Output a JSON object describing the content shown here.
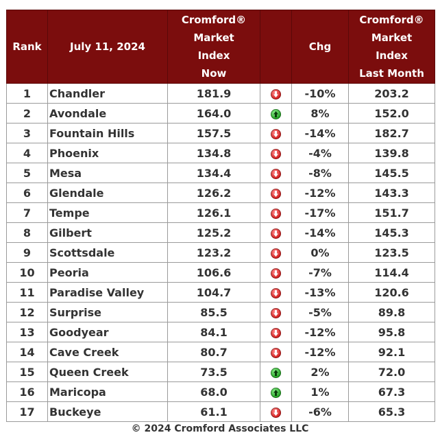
{
  "headers": {
    "rank": "Rank",
    "date": "July 11, 2024",
    "now": [
      "Cromford®",
      "Market",
      "Index",
      "Now"
    ],
    "chg": "Chg",
    "last": [
      "Cromford®",
      "Market",
      "Index",
      "Last Month"
    ]
  },
  "rows": [
    {
      "rank": "1",
      "city": "Chandler",
      "now": "181.9",
      "dir": "down",
      "chg": "-10%",
      "last": "203.2"
    },
    {
      "rank": "2",
      "city": "Avondale",
      "now": "164.0",
      "dir": "up",
      "chg": "8%",
      "last": "152.0"
    },
    {
      "rank": "3",
      "city": "Fountain Hills",
      "now": "157.5",
      "dir": "down",
      "chg": "-14%",
      "last": "182.7"
    },
    {
      "rank": "4",
      "city": "Phoenix",
      "now": "134.8",
      "dir": "down",
      "chg": "-4%",
      "last": "139.8"
    },
    {
      "rank": "5",
      "city": "Mesa",
      "now": "134.4",
      "dir": "down",
      "chg": "-8%",
      "last": "145.5"
    },
    {
      "rank": "6",
      "city": "Glendale",
      "now": "126.2",
      "dir": "down",
      "chg": "-12%",
      "last": "143.3"
    },
    {
      "rank": "7",
      "city": "Tempe",
      "now": "126.1",
      "dir": "down",
      "chg": "-17%",
      "last": "151.7"
    },
    {
      "rank": "8",
      "city": "Gilbert",
      "now": "125.2",
      "dir": "down",
      "chg": "-14%",
      "last": "145.3"
    },
    {
      "rank": "9",
      "city": "Scottsdale",
      "now": "123.2",
      "dir": "down",
      "chg": "0%",
      "last": "123.5"
    },
    {
      "rank": "10",
      "city": "Peoria",
      "now": "106.6",
      "dir": "down",
      "chg": "-7%",
      "last": "114.4"
    },
    {
      "rank": "11",
      "city": "Paradise Valley",
      "now": "104.7",
      "dir": "down",
      "chg": "-13%",
      "last": "120.6"
    },
    {
      "rank": "12",
      "city": "Surprise",
      "now": "85.5",
      "dir": "down",
      "chg": "-5%",
      "last": "89.8"
    },
    {
      "rank": "13",
      "city": "Goodyear",
      "now": "84.1",
      "dir": "down",
      "chg": "-12%",
      "last": "95.8"
    },
    {
      "rank": "14",
      "city": "Cave Creek",
      "now": "80.7",
      "dir": "down",
      "chg": "-12%",
      "last": "92.1"
    },
    {
      "rank": "15",
      "city": "Queen Creek",
      "now": "73.5",
      "dir": "up",
      "chg": "2%",
      "last": "72.0"
    },
    {
      "rank": "16",
      "city": "Maricopa",
      "now": "68.0",
      "dir": "up",
      "chg": "1%",
      "last": "67.3"
    },
    {
      "rank": "17",
      "city": "Buckeye",
      "now": "61.1",
      "dir": "down",
      "chg": "-6%",
      "last": "65.3"
    }
  ],
  "icons": {
    "down": "red-down-arrow-icon",
    "up": "green-up-arrow-icon"
  },
  "colors": {
    "header_bg": "#7b0d0d",
    "down": "#d11a1a",
    "up": "#1e9e1e"
  },
  "footer": "© 2024 Cromford Associates LLC"
}
